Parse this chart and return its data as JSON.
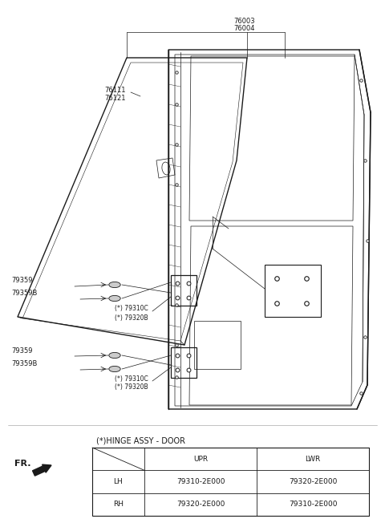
{
  "bg_color": "#ffffff",
  "line_color": "#1a1a1a",
  "lw_main": 1.0,
  "lw_thin": 0.5,
  "fs_label": 6.0,
  "fs_small": 5.5,
  "fs_table": 6.5,
  "table_title": "(*)HINGE ASSY - DOOR",
  "table_headers": [
    "",
    "UPR",
    "LWR"
  ],
  "table_rows": [
    [
      "LH",
      "79310-2E000",
      "79320-2E000"
    ],
    [
      "RH",
      "79320-2E000",
      "79310-2E000"
    ]
  ],
  "label_76003": "76003",
  "label_76004": "76004",
  "label_76111": "76111",
  "label_76121": "76121",
  "label_79359": "79359",
  "label_79359B": "79359B",
  "label_79310C": "(*) 79310C",
  "label_79320B": "(*) 79320B",
  "fr_label": "FR."
}
